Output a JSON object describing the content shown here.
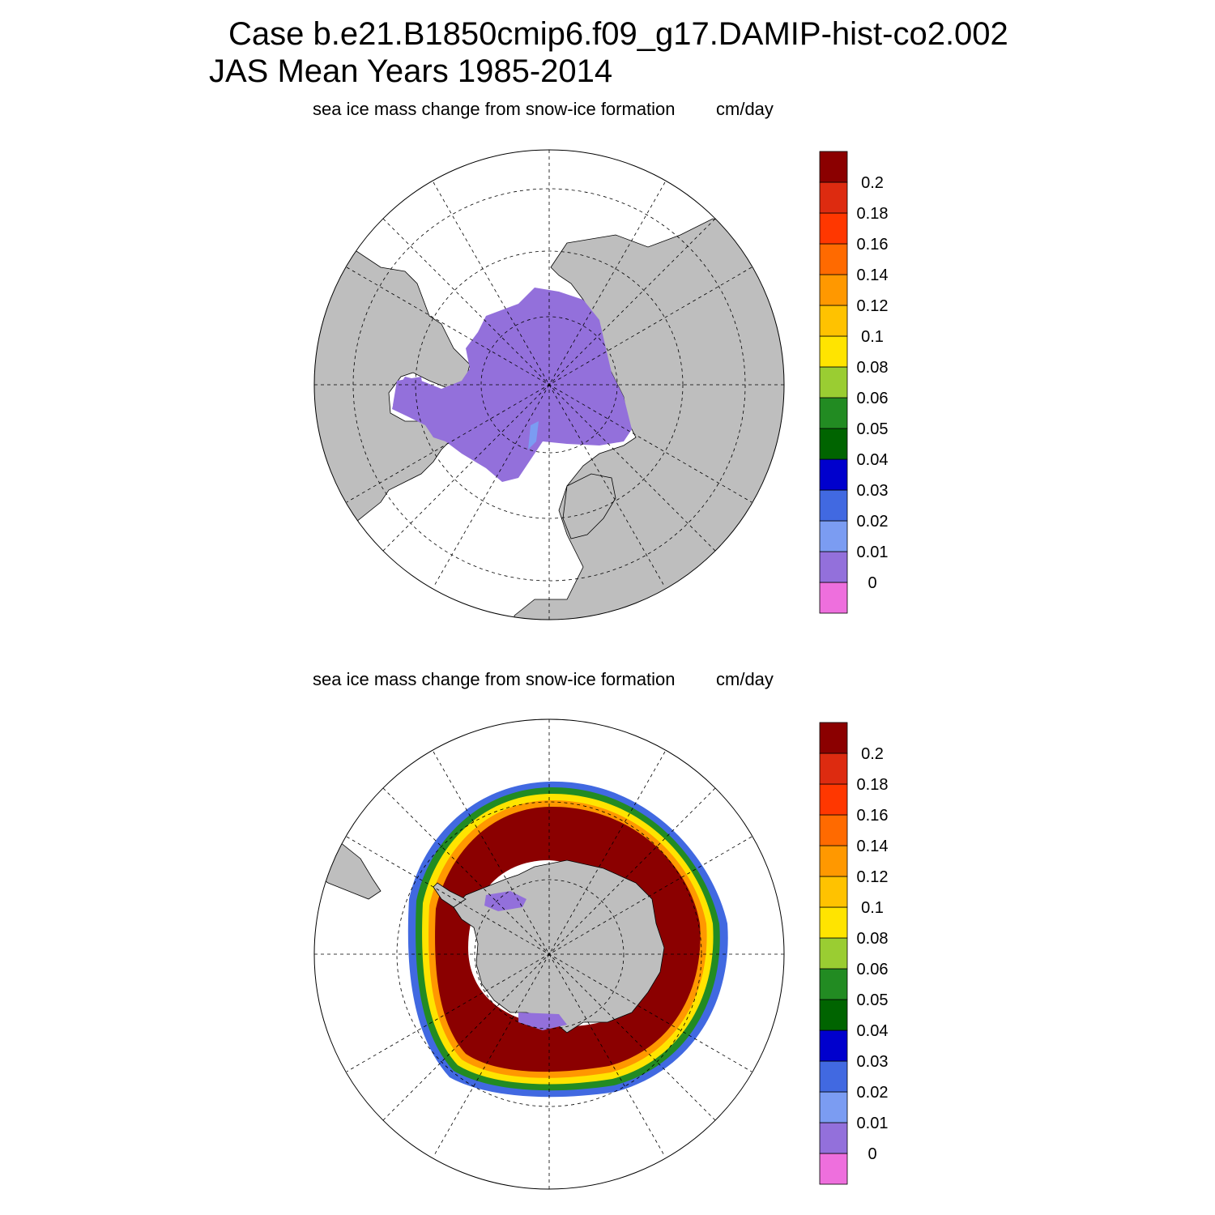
{
  "header": {
    "line1": "Case b.e21.B1850cmip6.f09_g17.DAMIP-hist-co2.002",
    "line2": "JAS Mean   Years 1985-2014"
  },
  "colors": {
    "land": "#bebebe",
    "ocean": "#ffffff",
    "palette": [
      "#ee6fdd",
      "#9370db",
      "#7b9cf2",
      "#4169e1",
      "#0000cd",
      "#006400",
      "#228b22",
      "#9acd32",
      "#ffe400",
      "#ffc200",
      "#ff9800",
      "#ff6a00",
      "#ff3700",
      "#dd2b10",
      "#8b0000"
    ]
  },
  "colorbar_levels": [
    "0",
    "0.01",
    "0.02",
    "0.03",
    "0.04",
    "0.05",
    "0.06",
    "0.08",
    "0.1",
    "0.12",
    "0.14",
    "0.16",
    "0.18",
    "0.2"
  ],
  "panels": [
    {
      "hemisphere": "north",
      "variable_label": "sea ice mass change from snow-ice formation",
      "units": "cm/day"
    },
    {
      "hemisphere": "south",
      "variable_label": "sea ice mass change from snow-ice formation",
      "units": "cm/day"
    }
  ]
}
